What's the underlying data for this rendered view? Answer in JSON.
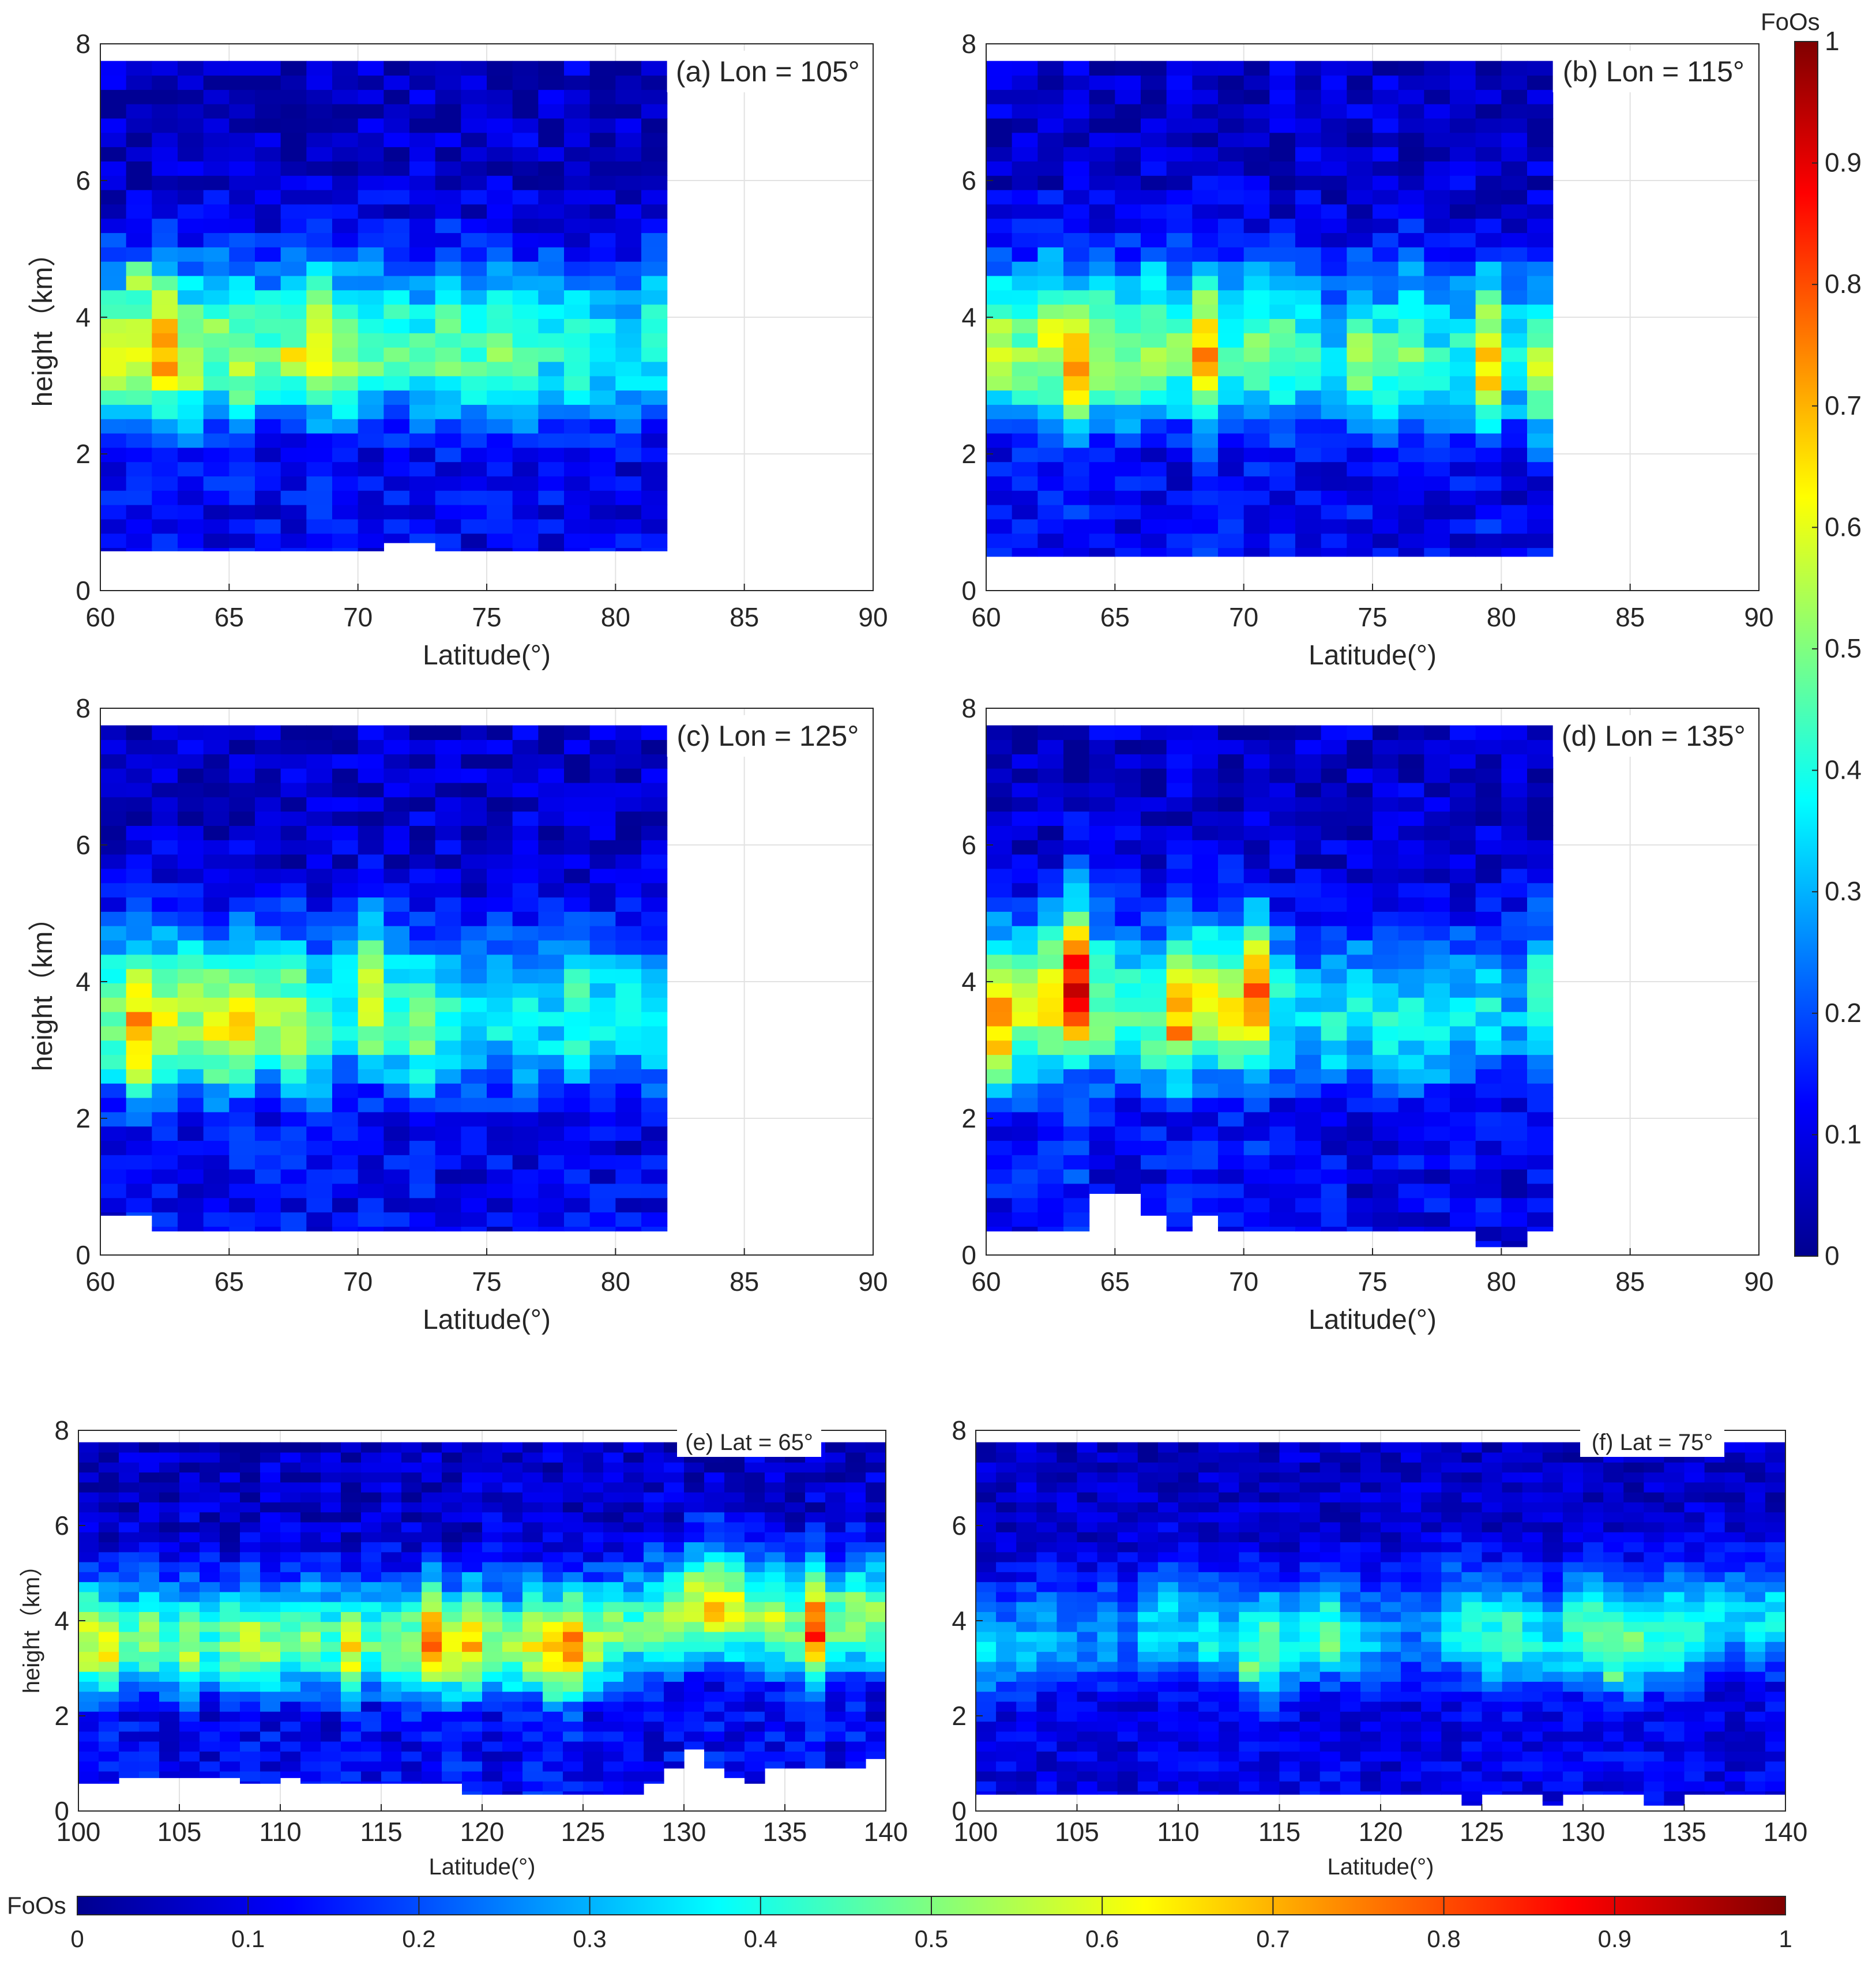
{
  "colorbar_right": {
    "label": "FoOs",
    "ticks": [
      "0",
      "0.1",
      "0.2",
      "0.3",
      "0.4",
      "0.5",
      "0.6",
      "0.7",
      "0.8",
      "0.9",
      "1"
    ]
  },
  "colorbar_bottom": {
    "label": "FoOs",
    "ticks": [
      "0",
      "0.1",
      "0.2",
      "0.3",
      "0.4",
      "0.5",
      "0.6",
      "0.7",
      "0.8",
      "0.9",
      "1"
    ]
  },
  "chart_data": [
    {
      "id": "a",
      "type": "heatmap",
      "annotation": "(a) Lon = 105°",
      "xlabel": "Latitude(°)",
      "ylabel": "height（km）",
      "xlim": [
        60,
        90
      ],
      "ylim": [
        0,
        8
      ],
      "xticks": [
        "60",
        "65",
        "70",
        "75",
        "80",
        "85",
        "90"
      ],
      "yticks": [
        "0",
        "2",
        "4",
        "6",
        "8"
      ],
      "x_range": [
        60,
        82
      ],
      "x_bins": 22,
      "y_range": [
        0,
        7.75
      ],
      "y_bins": 37,
      "colormap": "jet",
      "clim": [
        0,
        1
      ],
      "value_scale": [
        0,
        1
      ],
      "bottom_heights": [
        0.58,
        0.58,
        0.58,
        0.58,
        0.58,
        0.58,
        0.58,
        0.58,
        0.58,
        0.58,
        0.58,
        0.7,
        0.7,
        0.58,
        0.58,
        0.58,
        0.58,
        0.58,
        0.58,
        0.58,
        0.58,
        0.58
      ],
      "profile_centers": [
        3.4,
        3.5,
        3.5,
        3.4,
        3.6,
        3.4,
        3.5,
        3.6,
        3.5,
        3.4,
        3.5,
        3.6,
        3.4,
        3.5,
        3.4,
        3.5,
        3.4,
        3.6,
        3.4,
        3.5,
        3.4,
        3.6
      ],
      "profile_peaks": [
        0.58,
        0.6,
        0.7,
        0.56,
        0.5,
        0.54,
        0.45,
        0.5,
        0.62,
        0.55,
        0.48,
        0.45,
        0.42,
        0.5,
        0.44,
        0.52,
        0.45,
        0.4,
        0.44,
        0.38,
        0.35,
        0.4
      ],
      "hotspots": [
        [
          62.5,
          3.3,
          0.7
        ],
        [
          67.5,
          3.4,
          0.65
        ],
        [
          61.5,
          4.6,
          0.56
        ]
      ]
    },
    {
      "id": "b",
      "type": "heatmap",
      "annotation": "(b) Lon = 115°",
      "xlabel": "Latitude(°)",
      "ylabel": "",
      "xlim": [
        60,
        90
      ],
      "ylim": [
        0,
        8
      ],
      "xticks": [
        "60",
        "65",
        "70",
        "75",
        "80",
        "85",
        "90"
      ],
      "yticks": [
        "0",
        "2",
        "4",
        "6",
        "8"
      ],
      "x_range": [
        60,
        82
      ],
      "x_bins": 22,
      "y_range": [
        0,
        7.75
      ],
      "y_bins": 37,
      "colormap": "jet",
      "clim": [
        0,
        1
      ],
      "value_scale": [
        0,
        1
      ],
      "bottom_heights": [
        0.5,
        0.5,
        0.5,
        0.5,
        0.5,
        0.5,
        0.5,
        0.5,
        0.5,
        0.5,
        0.5,
        0.5,
        0.5,
        0.5,
        0.5,
        0.5,
        0.5,
        0.5,
        0.5,
        0.5,
        0.5,
        0.5
      ],
      "profile_centers": [
        3.5,
        3.4,
        3.6,
        3.3,
        3.5,
        3.4,
        3.6,
        3.5,
        3.4,
        3.4,
        3.5,
        3.4,
        3.5,
        3.3,
        3.4,
        3.3,
        3.5,
        3.4,
        3.4,
        3.3,
        3.4,
        3.2
      ],
      "profile_peaks": [
        0.55,
        0.5,
        0.6,
        0.68,
        0.55,
        0.5,
        0.52,
        0.48,
        0.7,
        0.44,
        0.5,
        0.46,
        0.42,
        0.35,
        0.5,
        0.45,
        0.5,
        0.38,
        0.4,
        0.68,
        0.4,
        0.55
      ],
      "hotspots": [
        [
          63.5,
          3.2,
          0.72
        ],
        [
          68.5,
          3.2,
          0.72
        ],
        [
          79.5,
          3.3,
          0.7
        ]
      ]
    },
    {
      "id": "c",
      "type": "heatmap",
      "annotation": "(c) Lon = 125°",
      "xlabel": "Latitude(°)",
      "ylabel": "height（km）",
      "xlim": [
        60,
        90
      ],
      "ylim": [
        0,
        8
      ],
      "xticks": [
        "60",
        "65",
        "70",
        "75",
        "80",
        "85",
        "90"
      ],
      "yticks": [
        "0",
        "2",
        "4",
        "6",
        "8"
      ],
      "x_range": [
        60,
        82
      ],
      "x_bins": 22,
      "y_range": [
        0,
        7.75
      ],
      "y_bins": 37,
      "colormap": "jet",
      "clim": [
        0,
        1
      ],
      "value_scale": [
        0,
        1
      ],
      "bottom_heights": [
        0.58,
        0.58,
        0.35,
        0.35,
        0.35,
        0.35,
        0.35,
        0.35,
        0.35,
        0.35,
        0.35,
        0.35,
        0.35,
        0.35,
        0.35,
        0.35,
        0.35,
        0.35,
        0.35,
        0.35,
        0.35,
        0.35
      ],
      "profile_centers": [
        3.4,
        3.3,
        3.4,
        3.5,
        3.3,
        3.4,
        3.5,
        3.4,
        3.3,
        3.6,
        3.7,
        3.4,
        3.3,
        3.5,
        3.4,
        3.5,
        3.4,
        3.4,
        3.5,
        3.4,
        3.5,
        3.4
      ],
      "profile_peaks": [
        0.5,
        0.72,
        0.6,
        0.55,
        0.6,
        0.62,
        0.55,
        0.55,
        0.45,
        0.4,
        0.62,
        0.45,
        0.5,
        0.42,
        0.35,
        0.38,
        0.4,
        0.35,
        0.44,
        0.4,
        0.36,
        0.38
      ],
      "hotspots": [
        [
          61.5,
          3.2,
          0.72
        ],
        [
          70.5,
          3.9,
          0.62
        ],
        [
          66.5,
          3.4,
          0.6
        ]
      ]
    },
    {
      "id": "d",
      "type": "heatmap",
      "annotation": "(d) Lon = 135°",
      "xlabel": "Latitude(°)",
      "ylabel": "",
      "xlim": [
        60,
        90
      ],
      "ylim": [
        0,
        8
      ],
      "xticks": [
        "60",
        "65",
        "70",
        "75",
        "80",
        "85",
        "90"
      ],
      "yticks": [
        "0",
        "2",
        "4",
        "6",
        "8"
      ],
      "x_range": [
        60,
        82
      ],
      "x_bins": 22,
      "y_range": [
        0,
        7.75
      ],
      "y_bins": 37,
      "colormap": "jet",
      "clim": [
        0,
        1
      ],
      "value_scale": [
        0,
        1
      ],
      "bottom_heights": [
        0.35,
        0.35,
        0.35,
        0.35,
        0.9,
        0.9,
        0.58,
        0.35,
        0.58,
        0.35,
        0.35,
        0.35,
        0.35,
        0.35,
        0.35,
        0.35,
        0.35,
        0.35,
        0.35,
        0.12,
        0.12,
        0.35
      ],
      "profile_centers": [
        3.4,
        3.5,
        3.7,
        3.9,
        3.6,
        3.5,
        3.4,
        3.5,
        3.6,
        3.6,
        3.7,
        3.5,
        3.4,
        3.4,
        3.5,
        3.3,
        3.4,
        3.4,
        3.5,
        3.6,
        3.5,
        3.6
      ],
      "profile_peaks": [
        0.7,
        0.55,
        0.65,
        0.88,
        0.5,
        0.45,
        0.5,
        0.68,
        0.6,
        0.6,
        0.75,
        0.4,
        0.35,
        0.38,
        0.36,
        0.42,
        0.36,
        0.38,
        0.35,
        0.36,
        0.3,
        0.44
      ],
      "hotspots": [
        [
          63.5,
          3.8,
          0.9
        ],
        [
          70.5,
          3.8,
          0.8
        ],
        [
          67.5,
          3.2,
          0.72
        ],
        [
          60.5,
          3.3,
          0.7
        ]
      ]
    },
    {
      "id": "e",
      "type": "heatmap",
      "annotation": "(e) Lat = 65°",
      "xlabel": "Latitude(°)",
      "ylabel": "height（km）",
      "xlim": [
        100,
        140
      ],
      "ylim": [
        0,
        8
      ],
      "xticks": [
        "100",
        "105",
        "110",
        "115",
        "120",
        "125",
        "130",
        "135",
        "140"
      ],
      "yticks": [
        "0",
        "2",
        "4",
        "6",
        "8"
      ],
      "x_range": [
        100,
        140
      ],
      "x_bins": 40,
      "y_range": [
        0,
        7.75
      ],
      "y_bins": 37,
      "colormap": "jet",
      "clim": [
        0,
        1
      ],
      "value_scale": [
        0,
        1
      ],
      "bottom_heights": [
        0.58,
        0.58,
        0.7,
        0.7,
        0.7,
        0.7,
        0.7,
        0.7,
        0.58,
        0.58,
        0.7,
        0.58,
        0.58,
        0.58,
        0.58,
        0.58,
        0.58,
        0.58,
        0.58,
        0.35,
        0.35,
        0.35,
        0.35,
        0.35,
        0.35,
        0.35,
        0.35,
        0.35,
        0.58,
        0.9,
        1.3,
        0.9,
        0.7,
        0.58,
        0.9,
        0.9,
        0.9,
        0.9,
        0.9,
        1.1
      ],
      "profile_centers": [
        3.5,
        3.4,
        3.5,
        3.6,
        3.5,
        3.4,
        3.6,
        3.5,
        3.5,
        3.4,
        3.5,
        3.6,
        3.5,
        3.4,
        3.6,
        3.5,
        3.4,
        3.6,
        3.4,
        3.5,
        3.5,
        3.4,
        3.5,
        3.3,
        3.4,
        3.5,
        3.7,
        3.8,
        3.9,
        4.0,
        4.2,
        4.3,
        4.2,
        4.0,
        3.9,
        3.8,
        3.8,
        3.9,
        4.0,
        4.0
      ],
      "profile_peaks": [
        0.6,
        0.62,
        0.45,
        0.5,
        0.45,
        0.55,
        0.42,
        0.5,
        0.55,
        0.52,
        0.45,
        0.5,
        0.45,
        0.62,
        0.45,
        0.5,
        0.55,
        0.78,
        0.6,
        0.7,
        0.55,
        0.5,
        0.6,
        0.68,
        0.75,
        0.55,
        0.5,
        0.45,
        0.5,
        0.52,
        0.6,
        0.65,
        0.6,
        0.5,
        0.55,
        0.5,
        0.82,
        0.5,
        0.55,
        0.5
      ],
      "hotspots": [
        [
          117.5,
          3.7,
          0.82
        ],
        [
          136.5,
          3.8,
          0.82
        ],
        [
          124.5,
          3.0,
          0.72
        ]
      ]
    },
    {
      "id": "f",
      "type": "heatmap",
      "annotation": "(f) Lat = 75°",
      "xlabel": "Latitude(°)",
      "ylabel": "",
      "xlim": [
        100,
        140
      ],
      "ylim": [
        0,
        8
      ],
      "xticks": [
        "100",
        "105",
        "110",
        "115",
        "120",
        "125",
        "130",
        "135",
        "140"
      ],
      "yticks": [
        "0",
        "2",
        "4",
        "6",
        "8"
      ],
      "x_range": [
        100,
        140
      ],
      "x_bins": 40,
      "y_range": [
        0,
        7.75
      ],
      "y_bins": 37,
      "colormap": "jet",
      "clim": [
        0,
        1
      ],
      "value_scale": [
        0,
        0.75
      ],
      "bottom_heights": [
        0.35,
        0.35,
        0.35,
        0.35,
        0.35,
        0.35,
        0.35,
        0.35,
        0.35,
        0.35,
        0.35,
        0.35,
        0.35,
        0.35,
        0.35,
        0.35,
        0.35,
        0.35,
        0.35,
        0.35,
        0.35,
        0.35,
        0.35,
        0.35,
        0.12,
        0.35,
        0.35,
        0.35,
        0.12,
        0.35,
        0.35,
        0.35,
        0.35,
        0.12,
        0.12,
        0.35,
        0.35,
        0.35,
        0.35,
        0.35
      ],
      "profile_centers": [
        3.3,
        3.4,
        3.5,
        3.6,
        3.5,
        3.6,
        3.7,
        3.6,
        3.8,
        3.9,
        3.8,
        3.7,
        3.6,
        3.5,
        3.4,
        3.5,
        3.7,
        3.8,
        3.6,
        3.5,
        3.6,
        3.7,
        3.8,
        3.9,
        3.8,
        3.6,
        3.7,
        3.6,
        3.5,
        3.7,
        3.8,
        3.6,
        3.5,
        3.6,
        3.7,
        3.8,
        3.9,
        4.0,
        3.9,
        4.0
      ],
      "profile_peaks": [
        0.34,
        0.28,
        0.3,
        0.3,
        0.28,
        0.26,
        0.28,
        0.24,
        0.34,
        0.36,
        0.32,
        0.38,
        0.34,
        0.42,
        0.5,
        0.38,
        0.4,
        0.44,
        0.35,
        0.3,
        0.26,
        0.24,
        0.28,
        0.36,
        0.4,
        0.42,
        0.44,
        0.38,
        0.34,
        0.42,
        0.46,
        0.44,
        0.48,
        0.4,
        0.44,
        0.38,
        0.36,
        0.32,
        0.34,
        0.36
      ],
      "hotspots": [
        [
          113.5,
          3.0,
          0.52
        ],
        [
          117.5,
          3.4,
          0.5
        ],
        [
          131.5,
          2.9,
          0.5
        ]
      ]
    }
  ]
}
